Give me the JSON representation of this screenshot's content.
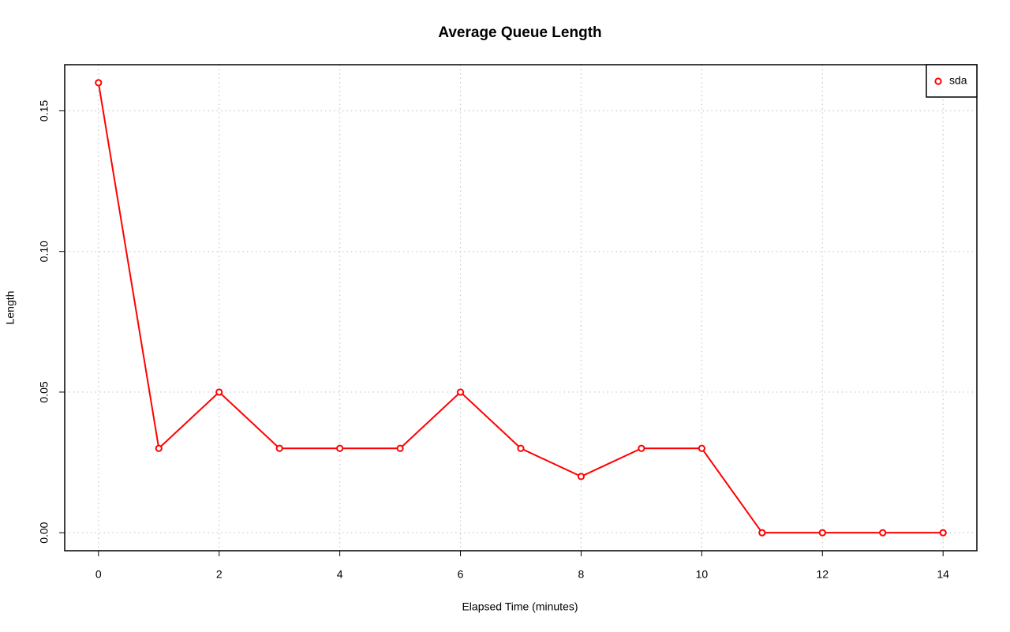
{
  "chart_data": {
    "type": "line",
    "title": "Average Queue Length",
    "x_label": "Elapsed Time (minutes)",
    "y_label": "Length",
    "x": [
      0,
      1,
      2,
      3,
      4,
      5,
      6,
      7,
      8,
      9,
      10,
      11,
      12,
      13,
      14
    ],
    "series": [
      {
        "name": "sda",
        "color": "#ff0000",
        "values": [
          0.16,
          0.03,
          0.05,
          0.03,
          0.03,
          0.03,
          0.05,
          0.03,
          0.02,
          0.03,
          0.03,
          0,
          0,
          0,
          0
        ]
      }
    ],
    "xlim": [
      -0.56,
      14.56
    ],
    "xticks": [
      0,
      2,
      4,
      6,
      8,
      10,
      12,
      14
    ],
    "ylim": [
      -0.0064,
      0.1664
    ],
    "yticks": [
      {
        "value": 0,
        "label": "0.00"
      },
      0.05,
      {
        "value": 0.1,
        "label": "0.10"
      },
      0.15
    ],
    "grid": true,
    "legend": "top-right"
  }
}
